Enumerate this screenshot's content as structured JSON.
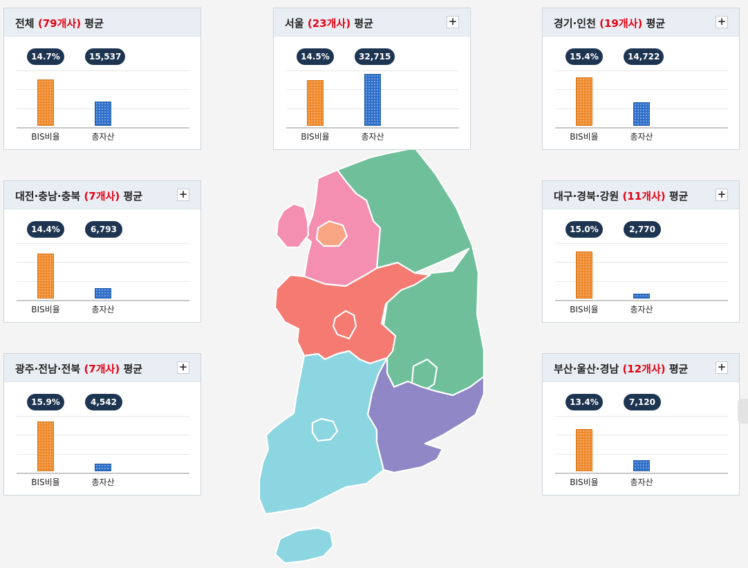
{
  "cards": [
    {
      "key": "all",
      "region": "전체",
      "open": "(",
      "count": "79개사",
      "close": ")",
      "suffix": "평균",
      "has_plus": false,
      "bis": "14.7%",
      "assets": "15,537",
      "bis_level": 0.7,
      "asset_level": 0.36
    },
    {
      "key": "seoul",
      "region": "서울",
      "open": "(",
      "count": "23개사",
      "close": ")",
      "suffix": "평균",
      "has_plus": true,
      "bis": "14.5%",
      "assets": "32,715",
      "bis_level": 0.69,
      "asset_level": 0.78
    },
    {
      "key": "gyeonggi",
      "region": "경기·인천",
      "open": "(",
      "count": "19개사",
      "close": ")",
      "suffix": "평균",
      "has_plus": true,
      "bis": "15.4%",
      "assets": "14,722",
      "bis_level": 0.73,
      "asset_level": 0.35
    },
    {
      "key": "daejeon",
      "region": "대전·충남·충북",
      "open": "(",
      "count": "7개사",
      "close": ")",
      "suffix": "평균",
      "has_plus": true,
      "bis": "14.4%",
      "assets": "6,793",
      "bis_level": 0.68,
      "asset_level": 0.16
    },
    {
      "key": "daegu",
      "region": "대구·경북·강원",
      "open": "(",
      "count": "11개사",
      "close": ")",
      "suffix": "평균",
      "has_plus": true,
      "bis": "15.0%",
      "assets": "2,770",
      "bis_level": 0.71,
      "asset_level": 0.07
    },
    {
      "key": "gwangju",
      "region": "광주·전남·전북",
      "open": "(",
      "count": "7개사",
      "close": ")",
      "suffix": "평균",
      "has_plus": true,
      "bis": "15.9%",
      "assets": "4,542",
      "bis_level": 0.75,
      "asset_level": 0.11
    },
    {
      "key": "busan",
      "region": "부산·울산·경남",
      "open": "(",
      "count": "12개사",
      "close": ")",
      "suffix": "평균",
      "has_plus": true,
      "bis": "13.4%",
      "assets": "7,120",
      "bis_level": 0.64,
      "asset_level": 0.17
    }
  ],
  "labels": {
    "bis": "BIS비율",
    "assets": "총자산",
    "plus": "+"
  },
  "colors": {
    "count_text": "#e60012",
    "badge_bg": "#1e3552",
    "bis_bar": "#ef8a2c",
    "asset_bar": "#2e6fc9",
    "map_gyeonggi": "#f48fb1",
    "map_seoul": "#f7a582",
    "map_gangwon_gyeongbuk": "#6fbf9b",
    "map_chungcheong": "#f47a72",
    "map_jeolla": "#8cd6e2",
    "map_gyeongnam": "#8f87c6"
  },
  "map_regions": [
    "gyeonggi",
    "seoul",
    "gangwon-gyeongbuk",
    "chungcheong",
    "jeolla",
    "gyeongnam",
    "jeju"
  ]
}
